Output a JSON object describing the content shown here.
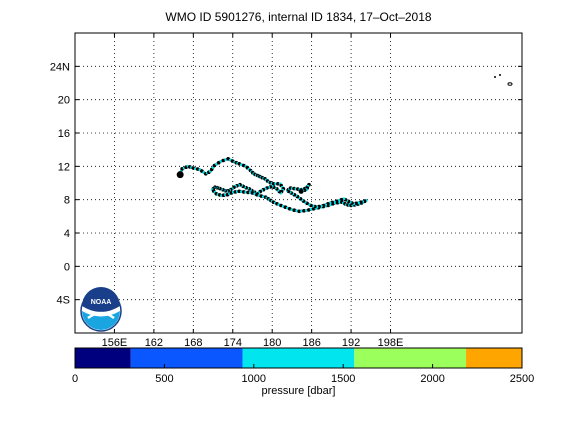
{
  "title": "WMO ID 5901276, internal ID 1834, 17–Oct–2018",
  "map": {
    "lon_range": [
      150,
      218
    ],
    "lat_range": [
      -8,
      28
    ],
    "lon_ticks": [
      {
        "value": 156,
        "label": "156E"
      },
      {
        "value": 162,
        "label": "162"
      },
      {
        "value": 168,
        "label": "168"
      },
      {
        "value": 174,
        "label": "174"
      },
      {
        "value": 180,
        "label": "180"
      },
      {
        "value": 186,
        "label": "186"
      },
      {
        "value": 192,
        "label": "192"
      },
      {
        "value": 198,
        "label": "198E"
      }
    ],
    "lat_ticks": [
      {
        "value": 24,
        "label": "24N"
      },
      {
        "value": 20,
        "label": "20"
      },
      {
        "value": 16,
        "label": "16"
      },
      {
        "value": 12,
        "label": "12"
      },
      {
        "value": 8,
        "label": "8"
      },
      {
        "value": 4,
        "label": "4"
      },
      {
        "value": 0,
        "label": "0"
      },
      {
        "value": -4,
        "label": "4S"
      }
    ],
    "grid": true,
    "track_color": "#000000",
    "profile_dot_color": "#00e5ee",
    "track": [
      [
        166.0,
        11.0
      ],
      [
        166.3,
        11.7
      ],
      [
        167.2,
        12.0
      ],
      [
        168.0,
        11.8
      ],
      [
        169.0,
        11.6
      ],
      [
        169.9,
        11.1
      ],
      [
        170.6,
        11.4
      ],
      [
        171.2,
        12.1
      ],
      [
        172.2,
        12.6
      ],
      [
        173.3,
        12.9
      ],
      [
        174.3,
        12.5
      ],
      [
        175.0,
        12.3
      ],
      [
        176.0,
        12.0
      ],
      [
        176.7,
        11.5
      ],
      [
        177.2,
        11.1
      ],
      [
        177.8,
        10.9
      ],
      [
        178.3,
        10.7
      ],
      [
        178.9,
        10.5
      ],
      [
        179.5,
        10.1
      ],
      [
        180.2,
        9.9
      ],
      [
        181.2,
        9.9
      ],
      [
        181.7,
        9.3
      ],
      [
        181.3,
        8.8
      ],
      [
        180.7,
        9.3
      ],
      [
        180.0,
        9.6
      ],
      [
        179.2,
        9.4
      ],
      [
        178.4,
        9.1
      ],
      [
        177.7,
        8.7
      ],
      [
        177.1,
        9.0
      ],
      [
        176.5,
        9.3
      ],
      [
        175.8,
        9.5
      ],
      [
        175.1,
        9.8
      ],
      [
        174.4,
        9.6
      ],
      [
        173.7,
        9.2
      ],
      [
        173.1,
        9.0
      ],
      [
        172.5,
        9.2
      ],
      [
        171.8,
        9.4
      ],
      [
        171.3,
        9.5
      ],
      [
        170.9,
        9.2
      ],
      [
        171.5,
        8.7
      ],
      [
        172.3,
        8.5
      ],
      [
        173.2,
        8.6
      ],
      [
        174.1,
        8.9
      ],
      [
        175.0,
        9.0
      ],
      [
        176.0,
        8.9
      ],
      [
        177.0,
        8.8
      ],
      [
        178.0,
        8.5
      ],
      [
        179.0,
        8.3
      ],
      [
        179.6,
        8.0
      ],
      [
        180.2,
        7.7
      ],
      [
        181.0,
        7.4
      ],
      [
        182.0,
        7.1
      ],
      [
        183.0,
        6.8
      ],
      [
        184.1,
        6.6
      ],
      [
        185.2,
        6.7
      ],
      [
        186.3,
        6.9
      ],
      [
        187.4,
        7.1
      ],
      [
        188.5,
        7.3
      ],
      [
        189.6,
        7.6
      ],
      [
        190.6,
        7.7
      ],
      [
        191.3,
        7.4
      ],
      [
        192.0,
        7.3
      ],
      [
        192.8,
        7.4
      ],
      [
        193.6,
        7.6
      ],
      [
        194.3,
        7.9
      ],
      [
        193.5,
        7.7
      ],
      [
        192.4,
        7.5
      ],
      [
        191.6,
        7.8
      ],
      [
        190.9,
        8.1
      ],
      [
        189.8,
        7.8
      ],
      [
        188.8,
        7.6
      ],
      [
        187.8,
        7.3
      ],
      [
        186.8,
        7.1
      ],
      [
        185.9,
        7.3
      ],
      [
        185.0,
        7.7
      ],
      [
        184.3,
        8.1
      ],
      [
        183.6,
        8.5
      ],
      [
        182.9,
        8.8
      ],
      [
        182.3,
        9.1
      ],
      [
        182.8,
        9.4
      ],
      [
        183.6,
        9.3
      ],
      [
        184.5,
        9.2
      ],
      [
        185.2,
        9.4
      ],
      [
        185.6,
        9.8
      ],
      [
        185.2,
        9.2
      ],
      [
        184.4,
        9.0
      ]
    ]
  },
  "colorbar": {
    "label": "pressure [dbar]",
    "ticks": [
      "0",
      "500",
      "1000",
      "1500",
      "2000",
      "2500"
    ],
    "range": [
      0,
      2500
    ],
    "segments": [
      {
        "from": 0,
        "to": 312,
        "color": "#00007f"
      },
      {
        "from": 312,
        "to": 937,
        "color": "#0b57ff"
      },
      {
        "from": 937,
        "to": 1562,
        "color": "#00e5ee"
      },
      {
        "from": 1562,
        "to": 2187,
        "color": "#9bff5c"
      },
      {
        "from": 2187,
        "to": 2500,
        "color": "#ffa500"
      }
    ]
  },
  "logo": {
    "text": "NOAA",
    "icon": "noaa-logo"
  }
}
